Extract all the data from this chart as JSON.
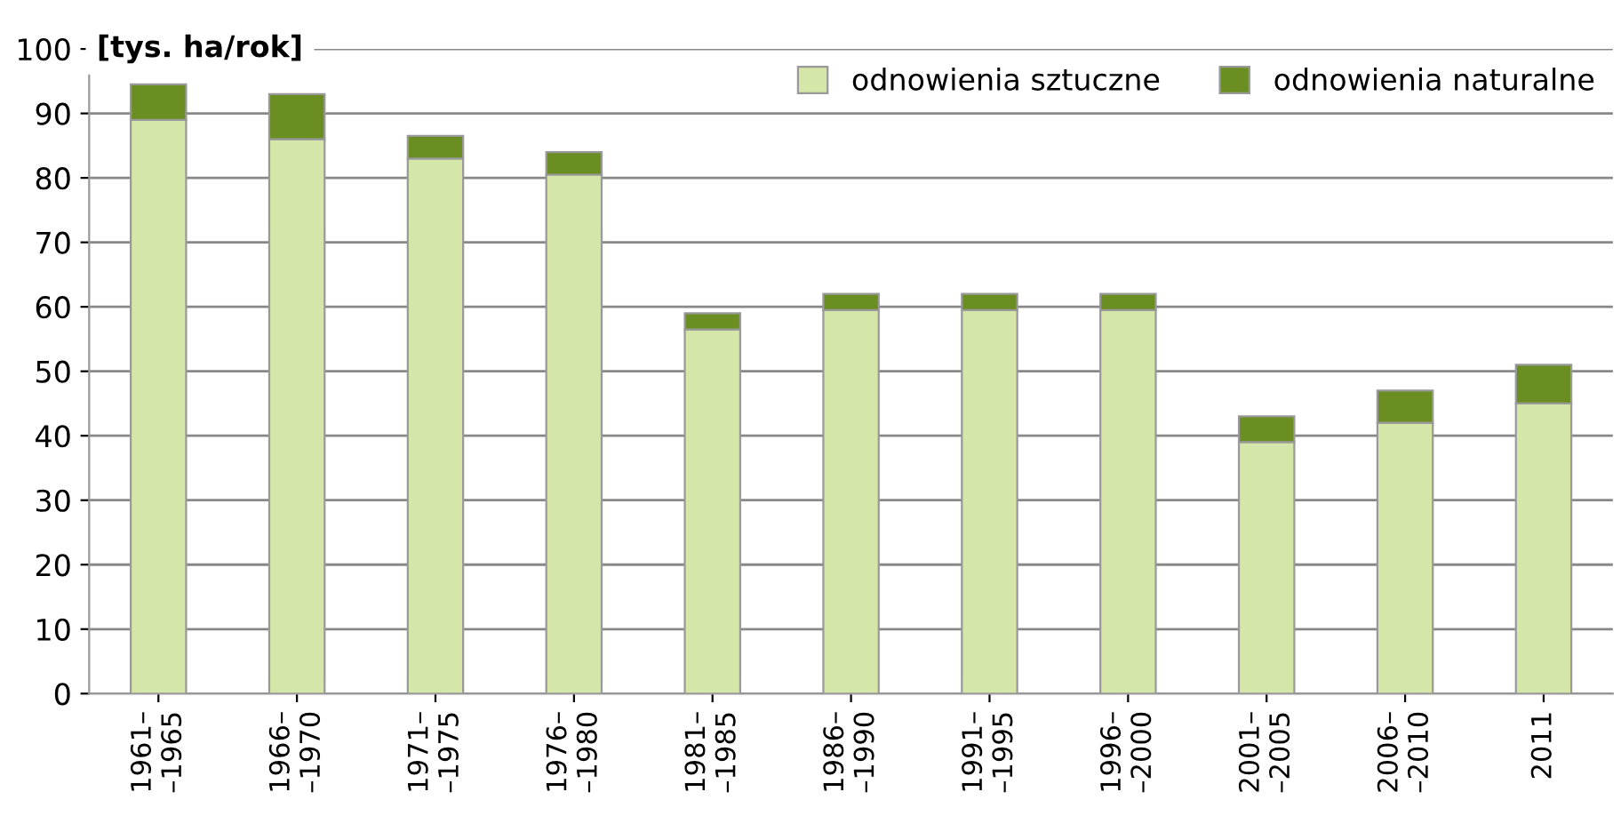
{
  "chart_data": {
    "type": "bar",
    "stacked": true,
    "ylabel": "[tys. ha/rok]",
    "categories": [
      "1961–\n–1965",
      "1966–\n–1970",
      "1971–\n–1975",
      "1976–\n–1980",
      "1981–\n–1985",
      "1986–\n–1990",
      "1991–\n–1995",
      "1996–\n–2000",
      "2001–\n–2005",
      "2006–\n–2010",
      "2011"
    ],
    "series": [
      {
        "name": "odnowienia sztuczne",
        "color": "#d4e6a8",
        "values": [
          89,
          86,
          83,
          80.5,
          56.5,
          59.5,
          59.5,
          59.5,
          39,
          42,
          45
        ]
      },
      {
        "name": "odnowienia naturalne",
        "color": "#6b8e23",
        "values": [
          5.5,
          7,
          3.5,
          3.5,
          2.5,
          2.5,
          2.5,
          2.5,
          4,
          5,
          6
        ]
      }
    ],
    "ylim": [
      0,
      100
    ],
    "yticks": [
      0,
      10,
      20,
      30,
      40,
      50,
      60,
      70,
      80,
      90,
      100
    ],
    "grid": "y",
    "legend": "top right"
  }
}
